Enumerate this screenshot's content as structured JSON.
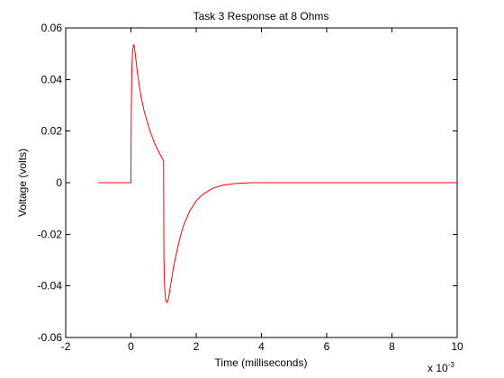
{
  "chart_data": {
    "type": "line",
    "title": "Task 3 Response at 8 Ohms",
    "xlabel": "Time (milliseconds)",
    "ylabel": "Voltage (volts)",
    "x_multiplier_base": "x 10",
    "x_multiplier_exponent": "-3",
    "xlim": [
      -0.002,
      0.01
    ],
    "ylim": [
      -0.06,
      0.06
    ],
    "x_ticks": [
      -0.002,
      0,
      0.002,
      0.004,
      0.006,
      0.008,
      0.01
    ],
    "x_tick_labels": [
      "-2",
      "0",
      "2",
      "4",
      "6",
      "8",
      "10"
    ],
    "y_ticks": [
      -0.06,
      -0.04,
      -0.02,
      0,
      0.02,
      0.04,
      0.06
    ],
    "y_tick_labels": [
      "-0.06",
      "-0.04",
      "-0.02",
      "0",
      "0.02",
      "0.04",
      "0.06"
    ],
    "grid": false,
    "series": [
      {
        "color": "#ff0000",
        "points": [
          [
            -0.001,
            0
          ],
          [
            0.0,
            0
          ],
          [
            1e-05,
            0.028
          ],
          [
            3e-05,
            0.045
          ],
          [
            5e-05,
            0.051
          ],
          [
            8e-05,
            0.0535
          ],
          [
            0.0001,
            0.053
          ],
          [
            0.00015,
            0.048
          ],
          [
            0.0002,
            0.0425
          ],
          [
            0.0003,
            0.034
          ],
          [
            0.0004,
            0.028
          ],
          [
            0.0005,
            0.0235
          ],
          [
            0.0006,
            0.0195
          ],
          [
            0.0007,
            0.016
          ],
          [
            0.0008,
            0.0132
          ],
          [
            0.0009,
            0.0108
          ],
          [
            0.001,
            0.0085
          ],
          [
            0.001,
            0.005
          ],
          [
            0.00101,
            -0.028
          ],
          [
            0.00103,
            -0.04
          ],
          [
            0.00106,
            -0.0455
          ],
          [
            0.0001105,
            -0.0465
          ],
          [
            0.00115,
            -0.045
          ],
          [
            0.0012,
            -0.041
          ],
          [
            0.0013,
            -0.033
          ],
          [
            0.0014,
            -0.027
          ],
          [
            0.0015,
            -0.0215
          ],
          [
            0.0016,
            -0.017
          ],
          [
            0.0018,
            -0.011
          ],
          [
            0.002,
            -0.007
          ],
          [
            0.0022,
            -0.0045
          ],
          [
            0.0025,
            -0.0022
          ],
          [
            0.0028,
            -0.001
          ],
          [
            0.0032,
            -0.0003
          ],
          [
            0.0037,
            0
          ],
          [
            0.01,
            0
          ]
        ]
      }
    ]
  }
}
